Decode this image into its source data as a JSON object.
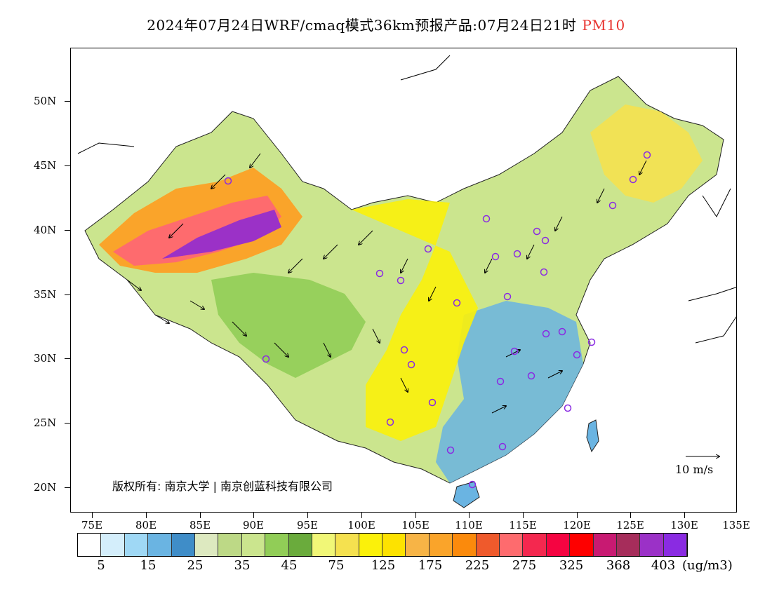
{
  "title": {
    "main": "2024年07月24日WRF/cmaq模式36km预报产品:07月24日21时",
    "variable": "PM10"
  },
  "axes": {
    "lat_labels": [
      "50N",
      "45N",
      "40N",
      "35N",
      "30N",
      "25N",
      "20N"
    ],
    "lon_labels": [
      "75E",
      "80E",
      "85E",
      "90E",
      "95E",
      "100E",
      "105E",
      "110E",
      "115E",
      "120E",
      "125E",
      "130E",
      "135E"
    ]
  },
  "copyright": "版权所有: 南京大学 | 南京创蓝科技有限公司",
  "vector_reference": "10 m/s",
  "colorbar": {
    "colors": [
      "#ffffff",
      "#d4eefb",
      "#9fd8f5",
      "#6ab4e2",
      "#3f8dc8",
      "#dde9c0",
      "#bdd986",
      "#cbe58e",
      "#91cd57",
      "#6aab3c",
      "#f1f777",
      "#f5e14f",
      "#fbf10a",
      "#fde200",
      "#f7b446",
      "#faa42a",
      "#fb8a0c",
      "#ef5a2c",
      "#fe6b6e",
      "#f4284f",
      "#f50441",
      "#fe0000",
      "#c81a72",
      "#a62d5b",
      "#9b31c7",
      "#8a2be2"
    ],
    "labels": [
      "5",
      "15",
      "25",
      "35",
      "45",
      "75",
      "125",
      "175",
      "225",
      "275",
      "325",
      "368",
      "403"
    ],
    "units": "(ug/m3)"
  },
  "map": {
    "land_color": "#f1f777",
    "ocean_color": "#ffffff",
    "station_marker_color": "#8a2be2"
  }
}
